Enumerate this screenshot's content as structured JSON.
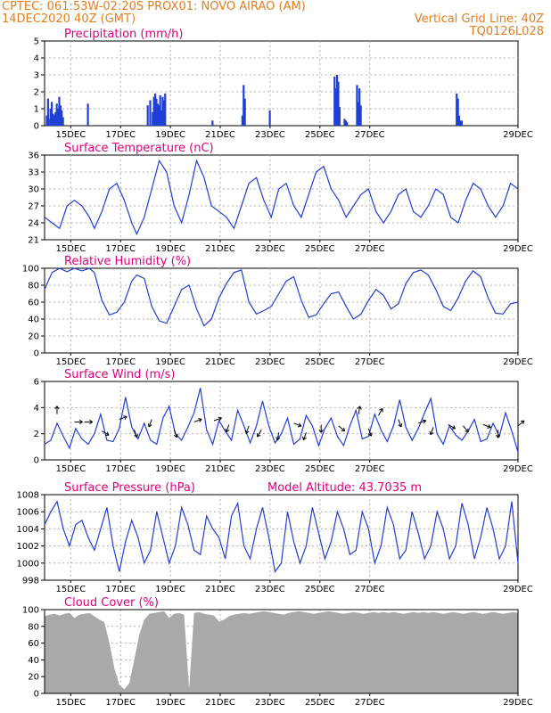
{
  "header": {
    "line1_left": "CPTEC:   061:53W-02:20S   PROX01: NOVO AIRAO (AM)",
    "line2_left": "14DEC2020 40Z (GMT)",
    "line2_right": "Vertical Grid Line: 40Z",
    "line3_right": "TQ0126L028"
  },
  "colors": {
    "header": "#e87d1e",
    "title": "#e0007a",
    "line": "#1f3fd6",
    "bars": "#1f3fd6",
    "cloud": "#a9a9a9",
    "grid": "#b0b0b0"
  },
  "chart_data": [
    {
      "id": "precipitation",
      "type": "bar",
      "title": "Precipitation (mm/h)",
      "x_tick_labels": [
        "15DEC",
        "17DEC",
        "19DEC",
        "21DEC",
        "23DEC",
        "25DEC",
        "27DEC",
        "29DEC"
      ],
      "ylim": [
        0,
        5
      ],
      "yticks": [
        0,
        1,
        2,
        3,
        4,
        5
      ],
      "grid": true,
      "x_day_offset": [
        0.05,
        0.1,
        0.12,
        0.2,
        0.25,
        0.3,
        0.35,
        0.4,
        0.45,
        0.5,
        0.55,
        0.6,
        0.65,
        0.7,
        1.7,
        4.1,
        4.2,
        4.3,
        4.35,
        4.4,
        4.45,
        4.5,
        4.55,
        4.6,
        4.65,
        4.7,
        4.75,
        4.8,
        6.7,
        7.9,
        7.95,
        8.0,
        9.0,
        11.6,
        11.65,
        11.7,
        11.75,
        11.8,
        12.0,
        12.05,
        12.1,
        12.5,
        12.55,
        12.6,
        12.65,
        16.5,
        16.55,
        16.6,
        16.65,
        16.7
      ],
      "values": [
        0.6,
        1.6,
        0.4,
        1.0,
        1.4,
        0.7,
        0.6,
        0.8,
        1.3,
        1.0,
        1.7,
        1.2,
        0.9,
        0.5,
        1.3,
        1.2,
        1.5,
        0.8,
        1.7,
        1.9,
        1.6,
        1.3,
        1.2,
        1.8,
        0.9,
        1.7,
        1.5,
        1.9,
        0.3,
        0.6,
        2.4,
        1.6,
        0.9,
        2.9,
        2.2,
        3.0,
        2.6,
        1.1,
        0.4,
        0.3,
        0.2,
        2.4,
        1.4,
        2.2,
        1.2,
        1.9,
        1.6,
        0.6,
        0.3,
        0.3
      ]
    },
    {
      "id": "temperature",
      "type": "line",
      "title": "Surface Temperature (nC)",
      "x_tick_labels": [
        "15DEC",
        "17DEC",
        "19DEC",
        "21DEC",
        "23DEC",
        "25DEC",
        "27DEC",
        "29DEC"
      ],
      "ylim": [
        21,
        36
      ],
      "yticks": [
        21,
        24,
        27,
        30,
        33,
        36
      ],
      "grid": true,
      "x_day_offset": [
        0,
        0.3,
        0.6,
        0.9,
        1.2,
        1.5,
        1.8,
        2.0,
        2.3,
        2.6,
        2.9,
        3.2,
        3.5,
        3.7,
        4.0,
        4.3,
        4.6,
        4.9,
        5.2,
        5.5,
        5.8,
        6.1,
        6.4,
        6.7,
        7.0,
        7.3,
        7.6,
        7.9,
        8.2,
        8.5,
        8.8,
        9.1,
        9.4,
        9.7,
        10.0,
        10.3,
        10.6,
        10.9,
        11.2,
        11.5,
        11.8,
        12.1,
        12.4,
        12.7,
        13.0,
        13.3,
        13.6,
        13.9,
        14.2,
        14.5,
        14.8,
        15.1,
        15.4,
        15.7,
        16.0,
        16.3,
        16.6,
        16.9,
        17.2,
        17.5,
        17.8,
        18.1,
        18.4,
        18.7,
        19.0
      ],
      "values": [
        25,
        24,
        23,
        27,
        28,
        27,
        25,
        23,
        26,
        30,
        31,
        28,
        24,
        22,
        25,
        30,
        35,
        33,
        27,
        24,
        29,
        35,
        32,
        27,
        26,
        25,
        23,
        27,
        31,
        32,
        28,
        25,
        30,
        31,
        27,
        25,
        29,
        33,
        34,
        30,
        28,
        25,
        27,
        29,
        30,
        26,
        24,
        26,
        29,
        30,
        26,
        25,
        27,
        30,
        29,
        25,
        24,
        28,
        31,
        30,
        27,
        25,
        27,
        31,
        30
      ]
    },
    {
      "id": "humidity",
      "type": "line",
      "title": "Relative Humidity (%)",
      "x_tick_labels": [
        "15DEC",
        "17DEC",
        "19DEC",
        "21DEC",
        "23DEC",
        "25DEC",
        "27DEC",
        "29DEC"
      ],
      "ylim": [
        0,
        100
      ],
      "yticks": [
        0,
        20,
        40,
        60,
        80,
        100
      ],
      "grid": true,
      "x_day_offset": [
        0,
        0.3,
        0.6,
        0.9,
        1.2,
        1.5,
        1.8,
        2.0,
        2.3,
        2.6,
        2.9,
        3.2,
        3.5,
        3.7,
        4.0,
        4.3,
        4.6,
        4.9,
        5.2,
        5.5,
        5.8,
        6.1,
        6.4,
        6.7,
        7.0,
        7.3,
        7.6,
        7.9,
        8.2,
        8.5,
        8.8,
        9.1,
        9.4,
        9.7,
        10.0,
        10.3,
        10.6,
        10.9,
        11.2,
        11.5,
        11.8,
        12.1,
        12.4,
        12.7,
        13.0,
        13.3,
        13.6,
        13.9,
        14.2,
        14.5,
        14.8,
        15.1,
        15.4,
        15.7,
        16.0,
        16.3,
        16.6,
        16.9,
        17.2,
        17.5,
        17.8,
        18.1,
        18.4,
        18.7,
        19.0
      ],
      "values": [
        75,
        95,
        100,
        96,
        100,
        97,
        100,
        95,
        62,
        45,
        48,
        60,
        85,
        92,
        88,
        55,
        38,
        35,
        55,
        75,
        80,
        52,
        32,
        40,
        65,
        82,
        95,
        98,
        60,
        46,
        50,
        55,
        70,
        85,
        90,
        62,
        42,
        45,
        58,
        70,
        72,
        55,
        40,
        46,
        62,
        75,
        68,
        52,
        58,
        82,
        95,
        98,
        92,
        75,
        55,
        50,
        65,
        85,
        97,
        90,
        65,
        47,
        46,
        58,
        60
      ]
    },
    {
      "id": "wind",
      "type": "line",
      "title": "Surface Wind (m/s)",
      "x_tick_labels": [
        "15DEC",
        "17DEC",
        "19DEC",
        "21DEC",
        "23DEC",
        "25DEC",
        "27DEC",
        "29DEC"
      ],
      "ylim": [
        0,
        6
      ],
      "yticks": [
        0,
        2,
        4,
        6
      ],
      "grid": true,
      "x_day_offset": [
        0,
        0.25,
        0.5,
        0.75,
        1.0,
        1.25,
        1.5,
        1.75,
        2.0,
        2.25,
        2.5,
        2.75,
        3.0,
        3.25,
        3.5,
        3.75,
        4.0,
        4.25,
        4.5,
        4.75,
        5.0,
        5.25,
        5.5,
        5.75,
        6.0,
        6.25,
        6.5,
        6.75,
        7.0,
        7.25,
        7.5,
        7.75,
        8.0,
        8.25,
        8.5,
        8.75,
        9.0,
        9.25,
        9.5,
        9.75,
        10.0,
        10.25,
        10.5,
        10.75,
        11.0,
        11.25,
        11.5,
        11.75,
        12.0,
        12.25,
        12.5,
        12.75,
        13.0,
        13.25,
        13.5,
        13.75,
        14.0,
        14.25,
        14.5,
        14.75,
        15.0,
        15.25,
        15.5,
        15.75,
        16.0,
        16.25,
        16.5,
        16.75,
        17.0,
        17.25,
        17.5,
        17.75,
        18.0,
        18.25,
        18.5,
        18.75,
        19.0
      ],
      "values": [
        1.2,
        1.5,
        2.8,
        1.8,
        0.9,
        2.4,
        1.6,
        1.2,
        2.0,
        3.5,
        1.5,
        1.4,
        2.4,
        4.8,
        2.5,
        1.6,
        2.8,
        1.5,
        1.2,
        3.2,
        4.1,
        2.0,
        1.5,
        2.5,
        3.6,
        5.5,
        2.3,
        1.2,
        3.0,
        2.2,
        1.5,
        3.8,
        2.6,
        1.3,
        2.6,
        4.5,
        2.6,
        1.3,
        2.0,
        3.2,
        1.2,
        1.6,
        3.4,
        2.6,
        1.1,
        2.4,
        3.2,
        1.8,
        1.1,
        2.6,
        3.8,
        1.6,
        1.8,
        3.5,
        2.3,
        1.4,
        2.6,
        4.6,
        2.5,
        1.5,
        2.4,
        3.6,
        4.7,
        2.0,
        1.2,
        2.6,
        1.9,
        1.5,
        2.2,
        3.1,
        1.4,
        1.6,
        2.8,
        1.8,
        3.6,
        2.2,
        0.6
      ],
      "arrow_day_offset": [
        0.5,
        1.2,
        1.6,
        2.3,
        3.0,
        3.6,
        4.3,
        5.2,
        6.0,
        6.8,
        7.4,
        8.2,
        8.7,
        9.4,
        10.0,
        10.5,
        11.1,
        11.8,
        12.6,
        13.0,
        13.4,
        14.2,
        15.0,
        15.6,
        16.2,
        16.8,
        17.6,
        18.2,
        19.0
      ],
      "arrow_y": [
        3.5,
        2.9,
        2.9,
        2.2,
        3.1,
        2.3,
        3.1,
        2.3,
        2.9,
        3.0,
        2.7,
        2.6,
        2.3,
        2.1,
        2.8,
        2.1,
        2.7,
        2.6,
        3.5,
        2.4,
        3.4,
        3.1,
        2.8,
        2.5,
        2.7,
        2.6,
        2.7,
        2.3,
        2.6
      ],
      "arrow_dir_deg": [
        90,
        0,
        0,
        -30,
        20,
        -70,
        -110,
        -70,
        20,
        20,
        -110,
        -110,
        -120,
        -100,
        -20,
        -110,
        -90,
        -40,
        80,
        -70,
        60,
        -70,
        20,
        -110,
        -30,
        -50,
        -20,
        -90,
        40
      ]
    },
    {
      "id": "pressure",
      "type": "line",
      "title": "Surface Pressure (hPa)",
      "annotation": "Model Altitude: 43.7035 m",
      "x_tick_labels": [
        "15DEC",
        "17DEC",
        "19DEC",
        "21DEC",
        "23DEC",
        "25DEC",
        "27DEC",
        "29DEC"
      ],
      "ylim": [
        998,
        1008
      ],
      "yticks": [
        998,
        1000,
        1002,
        1004,
        1006,
        1008
      ],
      "grid": true,
      "x_day_offset": [
        0,
        0.25,
        0.5,
        0.75,
        1.0,
        1.25,
        1.5,
        1.75,
        2.0,
        2.25,
        2.5,
        2.75,
        3.0,
        3.25,
        3.5,
        3.75,
        4.0,
        4.25,
        4.5,
        4.75,
        5.0,
        5.25,
        5.5,
        5.75,
        6.0,
        6.25,
        6.5,
        6.75,
        7.0,
        7.25,
        7.5,
        7.75,
        8.0,
        8.25,
        8.5,
        8.75,
        9.0,
        9.25,
        9.5,
        9.75,
        10.0,
        10.25,
        10.5,
        10.75,
        11.0,
        11.25,
        11.5,
        11.75,
        12.0,
        12.25,
        12.5,
        12.75,
        13.0,
        13.25,
        13.5,
        13.75,
        14.0,
        14.25,
        14.5,
        14.75,
        15.0,
        15.25,
        15.5,
        15.75,
        16.0,
        16.25,
        16.5,
        16.75,
        17.0,
        17.25,
        17.5,
        17.75,
        18.0,
        18.25,
        18.5,
        18.75,
        19.0
      ],
      "values": [
        1004.5,
        1006,
        1007.2,
        1004,
        1002,
        1004.5,
        1005,
        1003,
        1001.5,
        1004,
        1006.5,
        1002,
        999,
        1002.5,
        1005,
        1003,
        1000,
        1001.5,
        1006,
        1003,
        1000,
        1002,
        1006.5,
        1004.5,
        1001.5,
        1001,
        1005.5,
        1004,
        1003,
        1000.5,
        1005.5,
        1007,
        1002,
        1000.5,
        1004,
        1006.5,
        1003,
        999,
        1000,
        1006,
        1002.5,
        1000,
        1002,
        1006.5,
        1003.5,
        1000.5,
        1002.5,
        1006,
        1004,
        1001,
        1001.5,
        1006,
        1004,
        1000,
        1002,
        1006.5,
        1004.5,
        1000.5,
        1001.5,
        1006,
        1003.5,
        1000.5,
        1002,
        1006,
        1004,
        1000.5,
        1002,
        1007,
        1004.5,
        1000.5,
        1003,
        1006.5,
        1004,
        1000.5,
        1002,
        1007.2,
        1000
      ]
    },
    {
      "id": "cloud_cover",
      "type": "area",
      "title": "Cloud Cover (%)",
      "x_tick_labels": [
        "15DEC",
        "17DEC",
        "19DEC",
        "21DEC",
        "23DEC",
        "25DEC",
        "27DEC",
        "29DEC"
      ],
      "ylim": [
        0,
        100
      ],
      "yticks": [
        0,
        20,
        40,
        60,
        80,
        100
      ],
      "grid": true,
      "x_day_offset": [
        0,
        0.2,
        0.4,
        0.6,
        0.8,
        1.0,
        1.2,
        1.4,
        1.6,
        1.8,
        2.0,
        2.2,
        2.4,
        2.6,
        2.8,
        3.0,
        3.2,
        3.4,
        3.6,
        3.8,
        4.0,
        4.2,
        4.4,
        4.6,
        4.8,
        5.0,
        5.2,
        5.4,
        5.6,
        5.8,
        6.0,
        6.2,
        6.4,
        6.6,
        6.8,
        7.0,
        7.2,
        7.4,
        7.6,
        7.8,
        8.0,
        8.2,
        8.4,
        8.6,
        8.8,
        9.0,
        9.2,
        9.4,
        9.6,
        9.8,
        10.0,
        10.2,
        10.4,
        10.6,
        10.8,
        11.0,
        11.2,
        11.4,
        11.6,
        11.8,
        12.0,
        12.2,
        12.4,
        12.6,
        12.8,
        13.0,
        13.2,
        13.4,
        13.6,
        13.8,
        14.0,
        14.2,
        14.4,
        14.6,
        14.8,
        15.0,
        15.2,
        15.4,
        15.6,
        15.8,
        16.0,
        16.2,
        16.4,
        16.6,
        16.8,
        17.0,
        17.2,
        17.4,
        17.6,
        17.8,
        18.0,
        18.2,
        18.4,
        18.6,
        18.8,
        19.0
      ],
      "values": [
        92,
        94,
        95,
        93,
        95,
        96,
        90,
        94,
        95,
        96,
        92,
        88,
        85,
        60,
        30,
        10,
        5,
        12,
        40,
        70,
        88,
        95,
        96,
        97,
        98,
        90,
        95,
        96,
        94,
        5,
        96,
        97,
        95,
        94,
        93,
        86,
        88,
        92,
        94,
        95,
        96,
        95,
        96,
        97,
        98,
        97,
        96,
        95,
        94,
        96,
        97,
        98,
        97,
        96,
        95,
        96,
        97,
        98,
        97,
        96,
        95,
        96,
        97,
        96,
        95,
        96,
        97,
        96,
        97,
        96,
        97,
        96,
        95,
        96,
        97,
        96,
        97,
        96,
        97,
        96,
        95,
        96,
        97,
        96,
        95,
        96,
        97,
        96,
        95,
        96,
        97,
        96,
        95,
        96,
        97,
        96
      ]
    }
  ]
}
